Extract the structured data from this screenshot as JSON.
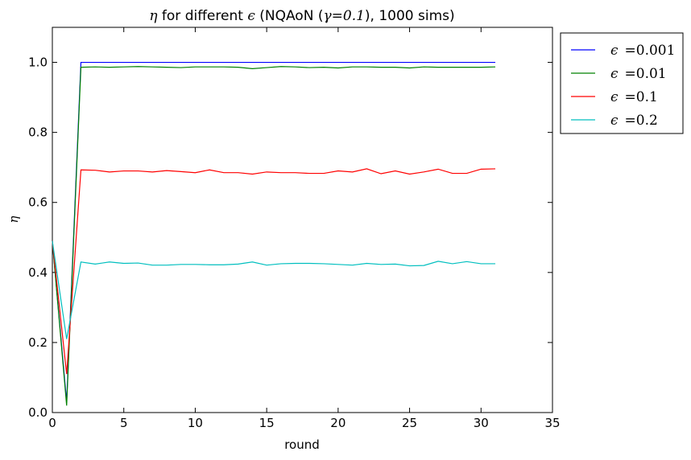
{
  "chart_data": {
    "type": "line",
    "title_symbol": "η",
    "title_part1": " for different ",
    "title_eps": "ϵ",
    "title_part2": " (NQAoN (",
    "title_gamma": "γ=0.1",
    "title_part3": "), 1000 sims)",
    "xlabel": "round",
    "ylabel": "η",
    "xlim": [
      0,
      35
    ],
    "ylim": [
      0,
      1.1
    ],
    "xticks": [
      0,
      5,
      10,
      15,
      20,
      25,
      30,
      35
    ],
    "xtick_labels": [
      "0",
      "5",
      "10",
      "15",
      "20",
      "25",
      "30",
      "35"
    ],
    "yticks": [
      0.0,
      0.2,
      0.4,
      0.6,
      0.8,
      1.0
    ],
    "ytick_labels": [
      "0.0",
      "0.2",
      "0.4",
      "0.6",
      "0.8",
      "1.0"
    ],
    "grid": false,
    "legend_position": "outside-top-right",
    "x": [
      0,
      1,
      2,
      3,
      4,
      5,
      6,
      7,
      8,
      9,
      10,
      11,
      12,
      13,
      14,
      15,
      16,
      17,
      18,
      19,
      20,
      21,
      22,
      23,
      24,
      25,
      26,
      27,
      28,
      29,
      30,
      31
    ],
    "series": [
      {
        "name": "ϵ =0.001",
        "eps_symbol": "ϵ",
        "value_text": "=0.001",
        "color": "#0000ff",
        "values": [
          0.49,
          0.03,
          1.0,
          1.0,
          1.0,
          1.0,
          1.0,
          1.0,
          1.0,
          1.0,
          1.0,
          1.0,
          1.0,
          1.0,
          1.0,
          1.0,
          1.0,
          1.0,
          1.0,
          1.0,
          1.0,
          1.0,
          1.0,
          1.0,
          1.0,
          1.0,
          1.0,
          1.0,
          1.0,
          1.0,
          1.0,
          1.0
        ]
      },
      {
        "name": "ϵ =0.01",
        "eps_symbol": "ϵ",
        "value_text": "=0.01",
        "color": "#008000",
        "values": [
          0.49,
          0.02,
          0.986,
          0.987,
          0.986,
          0.987,
          0.988,
          0.987,
          0.986,
          0.985,
          0.987,
          0.987,
          0.987,
          0.986,
          0.982,
          0.985,
          0.988,
          0.987,
          0.985,
          0.986,
          0.984,
          0.987,
          0.987,
          0.986,
          0.986,
          0.984,
          0.987,
          0.986,
          0.986,
          0.986,
          0.986,
          0.987
        ]
      },
      {
        "name": "ϵ =0.1",
        "eps_symbol": "ϵ",
        "value_text": "=0.1",
        "color": "#ff0000",
        "values": [
          0.49,
          0.11,
          0.693,
          0.692,
          0.687,
          0.69,
          0.69,
          0.687,
          0.691,
          0.688,
          0.685,
          0.693,
          0.685,
          0.685,
          0.681,
          0.687,
          0.685,
          0.685,
          0.683,
          0.683,
          0.69,
          0.687,
          0.696,
          0.682,
          0.69,
          0.681,
          0.687,
          0.695,
          0.683,
          0.683,
          0.695,
          0.696
        ]
      },
      {
        "name": "ϵ =0.2",
        "eps_symbol": "ϵ",
        "value_text": "=0.2",
        "color": "#00bfbf",
        "values": [
          0.49,
          0.21,
          0.43,
          0.424,
          0.43,
          0.426,
          0.427,
          0.421,
          0.421,
          0.423,
          0.423,
          0.422,
          0.422,
          0.424,
          0.43,
          0.421,
          0.425,
          0.426,
          0.426,
          0.425,
          0.423,
          0.421,
          0.426,
          0.423,
          0.424,
          0.419,
          0.42,
          0.432,
          0.425,
          0.431,
          0.425,
          0.425
        ]
      }
    ]
  }
}
